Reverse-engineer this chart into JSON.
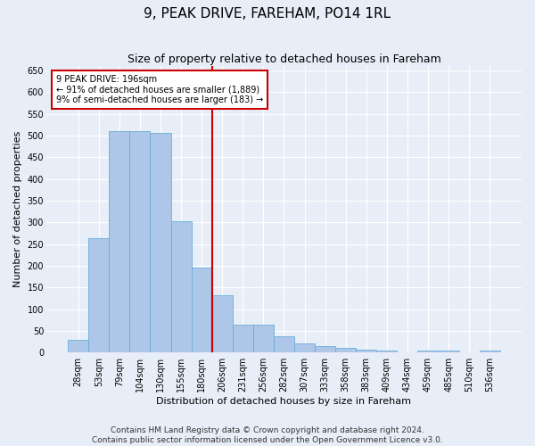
{
  "title1": "9, PEAK DRIVE, FAREHAM, PO14 1RL",
  "title2": "Size of property relative to detached houses in Fareham",
  "xlabel": "Distribution of detached houses by size in Fareham",
  "ylabel": "Number of detached properties",
  "footnote": "Contains HM Land Registry data © Crown copyright and database right 2024.\nContains public sector information licensed under the Open Government Licence v3.0.",
  "categories": [
    "28sqm",
    "53sqm",
    "79sqm",
    "104sqm",
    "130sqm",
    "155sqm",
    "180sqm",
    "206sqm",
    "231sqm",
    "256sqm",
    "282sqm",
    "307sqm",
    "333sqm",
    "358sqm",
    "383sqm",
    "409sqm",
    "434sqm",
    "459sqm",
    "485sqm",
    "510sqm",
    "536sqm"
  ],
  "values": [
    30,
    263,
    511,
    511,
    507,
    302,
    196,
    131,
    65,
    65,
    38,
    22,
    15,
    10,
    7,
    5,
    0,
    5,
    5,
    0,
    5
  ],
  "bar_color": "#aec6e8",
  "bar_edgecolor": "#6aaed6",
  "vline_color": "#cc0000",
  "annotation_title": "9 PEAK DRIVE: 196sqm",
  "annotation_line2": "← 91% of detached houses are smaller (1,889)",
  "annotation_line3": "9% of semi-detached houses are larger (183) →",
  "annotation_box_color": "#ffffff",
  "annotation_box_edgecolor": "#cc0000",
  "ylim": [
    0,
    660
  ],
  "yticks": [
    0,
    50,
    100,
    150,
    200,
    250,
    300,
    350,
    400,
    450,
    500,
    550,
    600,
    650
  ],
  "background_color": "#e8eef8",
  "grid_color": "#ffffff",
  "title1_fontsize": 11,
  "title2_fontsize": 9,
  "axis_label_fontsize": 8,
  "tick_fontsize": 7,
  "annotation_fontsize": 7,
  "footnote_fontsize": 6.5
}
